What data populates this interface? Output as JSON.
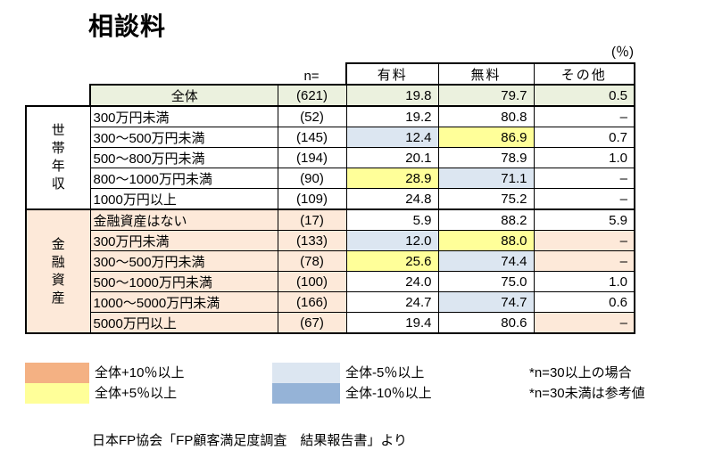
{
  "colors": {
    "green": "#EBF1DE",
    "pink": "#FDE9D9",
    "plus10": "#F4B183",
    "plus5": "#FFFF99",
    "minus5": "#DCE6F1",
    "minus10": "#95B3D7"
  },
  "chart_data": {
    "type": "table",
    "title": "相談料",
    "unit_percent": "(％)",
    "columns": [
      "n=",
      "有料",
      "無料",
      "その他"
    ],
    "overall": {
      "label": "全体",
      "n": "(621)",
      "paid": "19.8",
      "free": "79.7",
      "other": "0.5",
      "row_bg": "green"
    },
    "groups": [
      {
        "name": "世帯年収",
        "rows": [
          {
            "label": "300万円未満",
            "n": "(52)",
            "paid": {
              "v": "19.2"
            },
            "free": {
              "v": "80.8"
            },
            "other": {
              "v": "–"
            }
          },
          {
            "label": "300～500万円未満",
            "n": "(145)",
            "paid": {
              "v": "12.4",
              "bg": "minus5"
            },
            "free": {
              "v": "86.9",
              "bg": "plus5"
            },
            "other": {
              "v": "0.7"
            }
          },
          {
            "label": "500～800万円未満",
            "n": "(194)",
            "paid": {
              "v": "20.1"
            },
            "free": {
              "v": "78.9"
            },
            "other": {
              "v": "1.0"
            }
          },
          {
            "label": "800～1000万円未満",
            "n": "(90)",
            "paid": {
              "v": "28.9",
              "bg": "plus5"
            },
            "free": {
              "v": "71.1",
              "bg": "minus5"
            },
            "other": {
              "v": "–"
            }
          },
          {
            "label": "1000万円以上",
            "n": "(109)",
            "paid": {
              "v": "24.8"
            },
            "free": {
              "v": "75.2"
            },
            "other": {
              "v": "–"
            }
          }
        ]
      },
      {
        "name": "金融資産",
        "base_bg": "pink",
        "rows": [
          {
            "label": "金融資産はない",
            "n": "(17)",
            "paid": {
              "v": "5.9"
            },
            "free": {
              "v": "88.2"
            },
            "other": {
              "v": "5.9"
            }
          },
          {
            "label": "300万円未満",
            "n": "(133)",
            "paid": {
              "v": "12.0",
              "bg": "minus5"
            },
            "free": {
              "v": "88.0",
              "bg": "plus5"
            },
            "other": {
              "v": "–",
              "bg": "pink"
            }
          },
          {
            "label": "300～500万円未満",
            "n": "(78)",
            "paid": {
              "v": "25.6",
              "bg": "plus5"
            },
            "free": {
              "v": "74.4",
              "bg": "minus5"
            },
            "other": {
              "v": "–",
              "bg": "pink"
            }
          },
          {
            "label": "500～1000万円未満",
            "n": "(100)",
            "paid": {
              "v": "24.0"
            },
            "free": {
              "v": "75.0"
            },
            "other": {
              "v": "1.0"
            }
          },
          {
            "label": "1000～5000万円未満",
            "n": "(166)",
            "paid": {
              "v": "24.7"
            },
            "free": {
              "v": "74.7",
              "bg": "minus5"
            },
            "other": {
              "v": "0.6"
            }
          },
          {
            "label": "5000万円以上",
            "n": "(67)",
            "paid": {
              "v": "19.4"
            },
            "free": {
              "v": "80.6"
            },
            "other": {
              "v": "–",
              "bg": "pink"
            }
          }
        ]
      }
    ],
    "legend": [
      {
        "bg": "plus10",
        "label": "全体+10％以上"
      },
      {
        "bg": "plus5",
        "label": "全体+5％以上"
      },
      {
        "bg": "minus5",
        "label": "全体-5％以上"
      },
      {
        "bg": "minus10",
        "label": "全体-10％以上"
      }
    ],
    "notes": [
      "*n=30以上の場合",
      "*n=30未満は参考値"
    ],
    "source": "日本FP協会「FP顧客満足度調査　結果報告書」より"
  }
}
